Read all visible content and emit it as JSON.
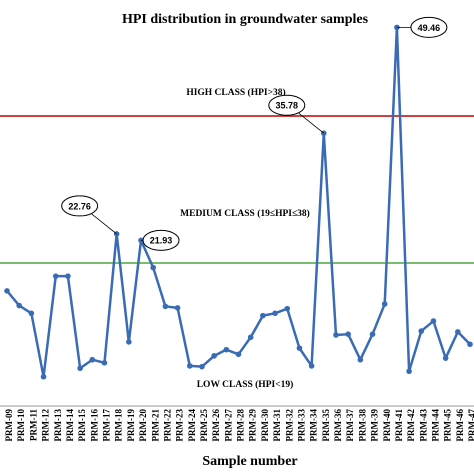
{
  "chart_data": {
    "type": "line",
    "title": "HPI distribution in groundwater samples",
    "x_label": "Sample number",
    "categories": [
      "PRM-09",
      "PRM-10",
      "PRM-11",
      "PRM-12",
      "PRM-13",
      "PRM-14",
      "PRM-15",
      "PRM-16",
      "PRM-17",
      "PRM-18",
      "PRM-19",
      "PRM-20",
      "PRM-21",
      "PRM-22",
      "PRM-23",
      "PRM-24",
      "PRM-25",
      "PRM-26",
      "PRM-27",
      "PRM-28",
      "PRM-29",
      "PRM-30",
      "PRM-31",
      "PRM-32",
      "PRM-33",
      "PRM-34",
      "PRM-35",
      "PRM-36",
      "PRM-37",
      "PRM-38",
      "PRM-39",
      "PRM-40",
      "PRM-41",
      "PRM-42",
      "PRM-43",
      "PRM-44",
      "PRM-45",
      "PRM-46",
      "PRM-47"
    ],
    "values": [
      15.4,
      13.5,
      12.5,
      4.3,
      17.3,
      17.3,
      5.4,
      6.5,
      6.1,
      22.76,
      8.8,
      21.93,
      18.4,
      13.4,
      13.2,
      5.7,
      5.6,
      7.0,
      7.8,
      7.2,
      9.4,
      12.2,
      12.5,
      13.1,
      8.0,
      5.7,
      35.78,
      9.7,
      9.8,
      6.5,
      9.8,
      13.7,
      49.46,
      5.0,
      10.2,
      11.5,
      6.7,
      10.1,
      8.5
    ],
    "color": "#3a6bb5",
    "callouts": [
      9,
      11,
      26,
      32
    ],
    "reference_lines": [
      {
        "value": 38,
        "label": "HIGH CLASS (HPI>38)",
        "color": "#c00000"
      },
      {
        "value": 19,
        "label": "MEDIUM CLASS (19≤HPI≤38)",
        "color": "#4aa83c"
      }
    ],
    "low_class_label": "LOW CLASS (HPI<19)",
    "ylim": [
      0,
      53
    ]
  }
}
